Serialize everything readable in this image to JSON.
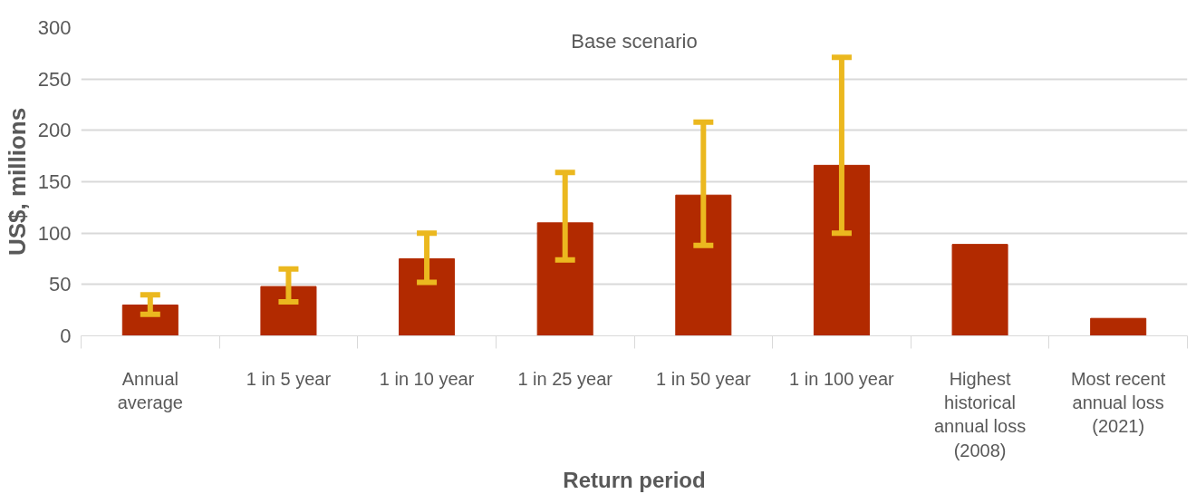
{
  "chart_data": {
    "type": "bar",
    "title": "Base scenario",
    "xlabel": "Return period",
    "ylabel": "US$, millions",
    "categories": [
      "Annual\naverage",
      "1 in 5 year",
      "1 in 10 year",
      "1 in 25 year",
      "1 in 50 year",
      "1 in 100 year",
      "Highest\nhistorical\nannual loss\n(2008)",
      "Most recent\nannual loss\n(2021)"
    ],
    "series": [
      {
        "color": "#b22a00",
        "values": [
          30,
          48,
          75,
          110,
          137,
          166,
          89,
          17
        ],
        "errors": [
          [
            21,
            40
          ],
          [
            33,
            65
          ],
          [
            52,
            100
          ],
          [
            74,
            159
          ],
          [
            88,
            208
          ],
          [
            100,
            271
          ],
          null,
          null
        ]
      }
    ],
    "ylim": [
      0,
      300
    ],
    "yticks": [
      0,
      50,
      100,
      150,
      200,
      250,
      300
    ],
    "grid": "y"
  }
}
